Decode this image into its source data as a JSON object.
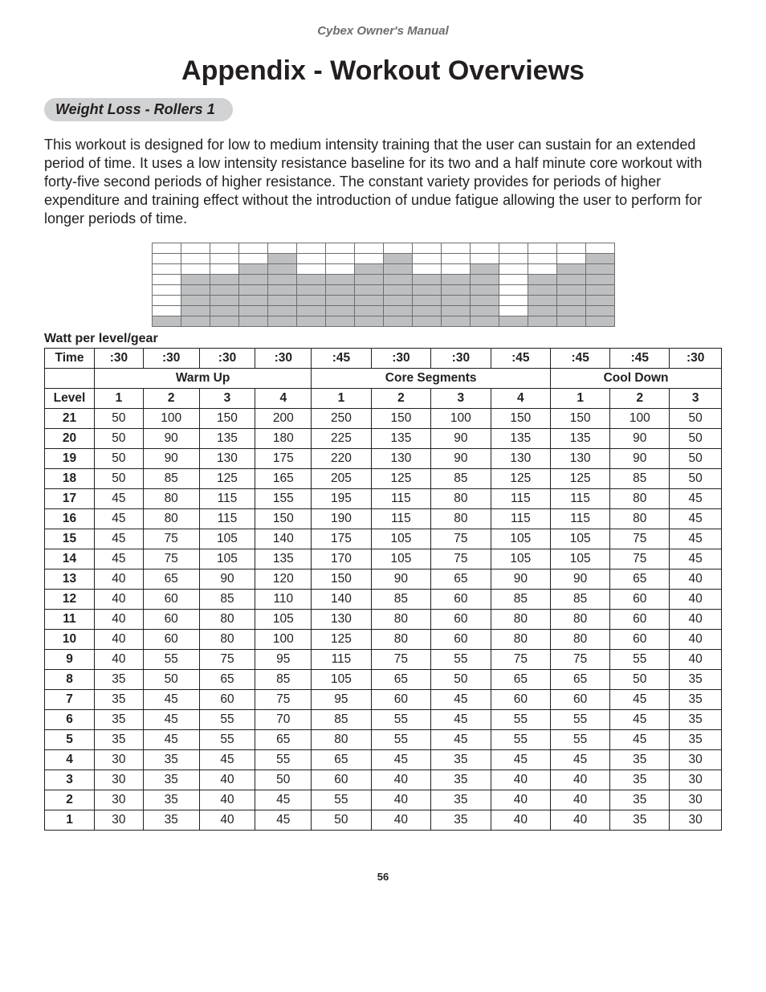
{
  "header": "Cybex Owner's Manual",
  "title": "Appendix - Workout Overviews",
  "subtitle": "Weight Loss - Rollers 1",
  "body": "This workout is designed for low to medium intensity training that the user can sustain for an extended period of time. It uses a low intensity resistance baseline for its two and a half minute core workout with forty-five second periods of higher resistance. The constant variety provides for periods of higher expenditure and training effect without the introduction of undue fatigue allowing the user to perform for longer periods of time.",
  "mini_chart": {
    "rows": 8,
    "cols": 16,
    "cell_border": "#6d6e71",
    "fill_color": "#bdbfc1",
    "bg_color": "#ffffff",
    "heights": [
      1,
      5,
      5,
      6,
      7,
      5,
      5,
      6,
      7,
      5,
      5,
      6,
      1,
      5,
      6,
      7
    ]
  },
  "caption": "Watt per level/gear",
  "time_label": "Time",
  "level_label": "Level",
  "times": [
    ":30",
    ":30",
    ":30",
    ":30",
    ":45",
    ":30",
    ":30",
    ":45",
    ":45",
    ":45",
    ":30"
  ],
  "sections": {
    "warmup": {
      "label": "Warm Up",
      "span": 4,
      "cols": [
        "1",
        "2",
        "3",
        "4"
      ]
    },
    "core": {
      "label": "Core Segments",
      "span": 4,
      "cols": [
        "1",
        "2",
        "3",
        "4"
      ]
    },
    "cool": {
      "label": "Cool Down",
      "span": 3,
      "cols": [
        "1",
        "2",
        "3"
      ]
    }
  },
  "rows": [
    {
      "level": "21",
      "v": [
        50,
        100,
        150,
        200,
        250,
        150,
        100,
        150,
        150,
        100,
        50
      ]
    },
    {
      "level": "20",
      "v": [
        50,
        90,
        135,
        180,
        225,
        135,
        90,
        135,
        135,
        90,
        50
      ]
    },
    {
      "level": "19",
      "v": [
        50,
        90,
        130,
        175,
        220,
        130,
        90,
        130,
        130,
        90,
        50
      ]
    },
    {
      "level": "18",
      "v": [
        50,
        85,
        125,
        165,
        205,
        125,
        85,
        125,
        125,
        85,
        50
      ]
    },
    {
      "level": "17",
      "v": [
        45,
        80,
        115,
        155,
        195,
        115,
        80,
        115,
        115,
        80,
        45
      ]
    },
    {
      "level": "16",
      "v": [
        45,
        80,
        115,
        150,
        190,
        115,
        80,
        115,
        115,
        80,
        45
      ]
    },
    {
      "level": "15",
      "v": [
        45,
        75,
        105,
        140,
        175,
        105,
        75,
        105,
        105,
        75,
        45
      ]
    },
    {
      "level": "14",
      "v": [
        45,
        75,
        105,
        135,
        170,
        105,
        75,
        105,
        105,
        75,
        45
      ]
    },
    {
      "level": "13",
      "v": [
        40,
        65,
        90,
        120,
        150,
        90,
        65,
        90,
        90,
        65,
        40
      ]
    },
    {
      "level": "12",
      "v": [
        40,
        60,
        85,
        110,
        140,
        85,
        60,
        85,
        85,
        60,
        40
      ]
    },
    {
      "level": "11",
      "v": [
        40,
        60,
        80,
        105,
        130,
        80,
        60,
        80,
        80,
        60,
        40
      ]
    },
    {
      "level": "10",
      "v": [
        40,
        60,
        80,
        100,
        125,
        80,
        60,
        80,
        80,
        60,
        40
      ]
    },
    {
      "level": "9",
      "v": [
        40,
        55,
        75,
        95,
        115,
        75,
        55,
        75,
        75,
        55,
        40
      ]
    },
    {
      "level": "8",
      "v": [
        35,
        50,
        65,
        85,
        105,
        65,
        50,
        65,
        65,
        50,
        35
      ]
    },
    {
      "level": "7",
      "v": [
        35,
        45,
        60,
        75,
        95,
        60,
        45,
        60,
        60,
        45,
        35
      ]
    },
    {
      "level": "6",
      "v": [
        35,
        45,
        55,
        70,
        85,
        55,
        45,
        55,
        55,
        45,
        35
      ]
    },
    {
      "level": "5",
      "v": [
        35,
        45,
        55,
        65,
        80,
        55,
        45,
        55,
        55,
        45,
        35
      ]
    },
    {
      "level": "4",
      "v": [
        30,
        35,
        45,
        55,
        65,
        45,
        35,
        45,
        45,
        35,
        30
      ]
    },
    {
      "level": "3",
      "v": [
        30,
        35,
        40,
        50,
        60,
        40,
        35,
        40,
        40,
        35,
        30
      ]
    },
    {
      "level": "2",
      "v": [
        30,
        35,
        40,
        45,
        55,
        40,
        35,
        40,
        40,
        35,
        30
      ]
    },
    {
      "level": "1",
      "v": [
        30,
        35,
        40,
        45,
        50,
        40,
        35,
        40,
        40,
        35,
        30
      ]
    }
  ],
  "page_number": "56"
}
